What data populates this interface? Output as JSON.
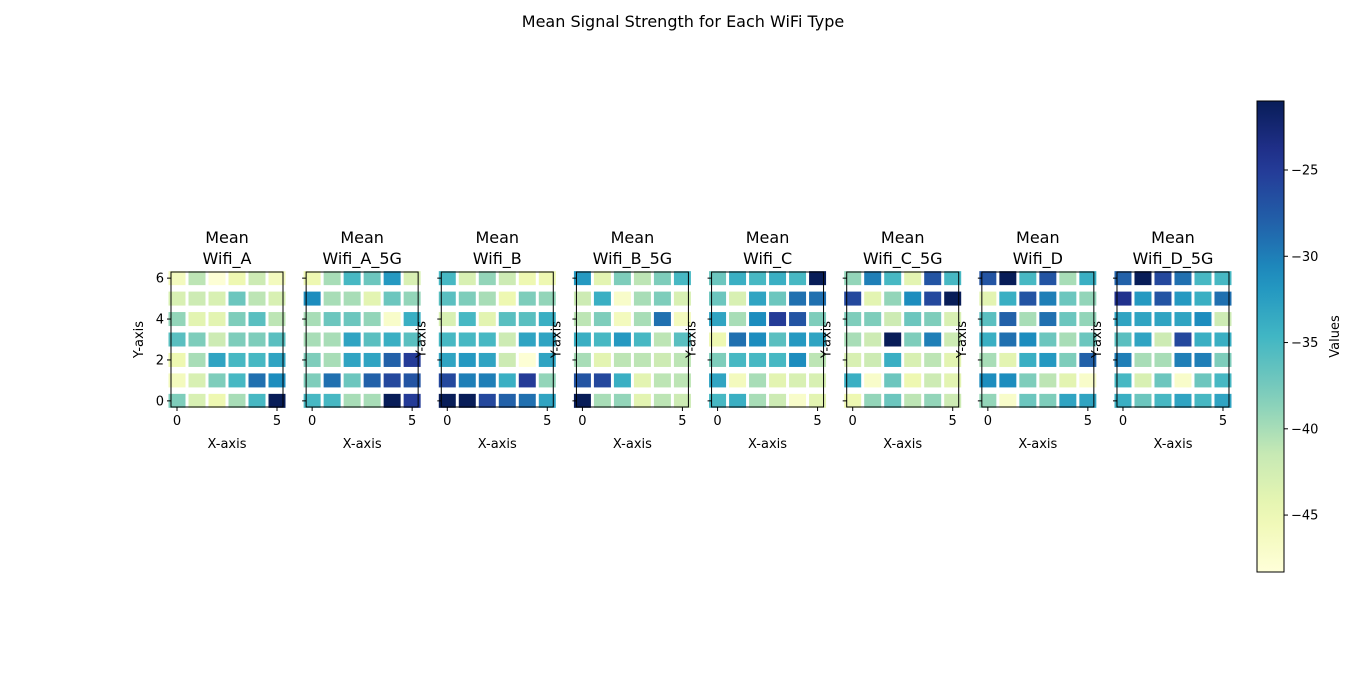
{
  "chart_data": {
    "type": "heatmap",
    "title": "Mean Signal Strength for Each WiFi Type",
    "colormap": "YlGnBu",
    "colorbar": {
      "label": "Values",
      "range": [
        -48.3,
        -21.0
      ],
      "ticks": [
        -25,
        -30,
        -35,
        -40,
        -45
      ],
      "tick_labels": [
        "−25",
        "−30",
        "−35",
        "−40",
        "−45"
      ]
    },
    "x_ticks": [
      0,
      5
    ],
    "y_ticks": [
      0,
      2,
      4,
      6
    ],
    "x_tick_labels": [
      "0",
      "5"
    ],
    "y_tick_labels": [
      "0",
      "2",
      "4",
      "6"
    ],
    "xlim": [
      -0.3,
      5.3
    ],
    "ylim": [
      -0.3,
      6.3
    ],
    "grid": "white lines between cells",
    "panels": [
      {
        "title_line1": "Mean",
        "title_line2": "Wifi_A",
        "xlabel": "X-axis",
        "ylabel": "Y-axis",
        "z": [
          [
            -38,
            -43,
            -45,
            -40,
            -35,
            -21
          ],
          [
            -46,
            -43,
            -38,
            -35,
            -29,
            -31
          ],
          [
            -45,
            -40,
            -33,
            -35,
            -35,
            -33
          ],
          [
            -36,
            -38,
            -42,
            -38,
            -38,
            -36
          ],
          [
            -39,
            -44,
            -44,
            -38,
            -36,
            -41
          ],
          [
            -43,
            -42,
            -43,
            -37,
            -41,
            -43
          ],
          [
            -46,
            -41,
            -48,
            -45,
            -42,
            -46
          ]
        ]
      },
      {
        "title_line1": "Mean",
        "title_line2": "Wifi_A_5G",
        "xlabel": "X-axis",
        "ylabel": "",
        "z": [
          [
            -35,
            -35,
            -40,
            -40,
            -21,
            -25
          ],
          [
            -38,
            -29,
            -37,
            -28,
            -26,
            -27
          ],
          [
            -38,
            -40,
            -33,
            -33,
            -28,
            -25
          ],
          [
            -40,
            -40,
            -33,
            -36,
            -34,
            -36
          ],
          [
            -40,
            -37,
            -37,
            -39,
            -47,
            -34
          ],
          [
            -31,
            -40,
            -40,
            -44,
            -37,
            -39
          ],
          [
            -45,
            -40,
            -35,
            -37,
            -32,
            -43
          ]
        ]
      },
      {
        "title_line1": "Mean",
        "title_line2": "Wifi_B",
        "xlabel": "X-axis",
        "ylabel": "Y-axis",
        "z": [
          [
            -21,
            -21,
            -26,
            -28,
            -29,
            -33
          ],
          [
            -26,
            -30,
            -30,
            -34,
            -25,
            -39
          ],
          [
            -33,
            -32,
            -33,
            -42,
            -48,
            -33
          ],
          [
            -35,
            -35,
            -35,
            -42,
            -33,
            -33
          ],
          [
            -43,
            -35,
            -44,
            -36,
            -36,
            -34
          ],
          [
            -36,
            -38,
            -40,
            -45,
            -38,
            -39
          ],
          [
            -35,
            -43,
            -39,
            -42,
            -45,
            -45
          ]
        ]
      },
      {
        "title_line1": "Mean",
        "title_line2": "Wifi_B_5G",
        "xlabel": "X-axis",
        "ylabel": "Y-axis",
        "z": [
          [
            -21,
            -40,
            -39,
            -44,
            -41,
            -42
          ],
          [
            -27,
            -26,
            -34,
            -44,
            -41,
            -41
          ],
          [
            -40,
            -44,
            -41,
            -41,
            -42,
            -41
          ],
          [
            -34,
            -35,
            -32,
            -35,
            -41,
            -36
          ],
          [
            -41,
            -38,
            -46,
            -40,
            -29,
            -46
          ],
          [
            -42,
            -34,
            -47,
            -40,
            -38,
            -43
          ],
          [
            -32,
            -44,
            -38,
            -41,
            -38,
            -35
          ]
        ]
      },
      {
        "title_line1": "Mean",
        "title_line2": "Wifi_C",
        "xlabel": "X-axis",
        "ylabel": "Y-axis",
        "z": [
          [
            -35,
            -34,
            -40,
            -42,
            -47,
            -44
          ],
          [
            -33,
            -46,
            -40,
            -44,
            -43,
            -43
          ],
          [
            -38,
            -35,
            -35,
            -35,
            -31,
            -41
          ],
          [
            -45,
            -29,
            -31,
            -36,
            -32,
            -33
          ],
          [
            -33,
            -40,
            -31,
            -25,
            -27,
            -38
          ],
          [
            -37,
            -43,
            -33,
            -37,
            -29,
            -29
          ],
          [
            -37,
            -34,
            -35,
            -34,
            -35,
            -21
          ]
        ]
      },
      {
        "title_line1": "Mean",
        "title_line2": "Wifi_C_5G",
        "xlabel": "X-axis",
        "ylabel": "Y-axis",
        "z": [
          [
            -45,
            -39,
            -37,
            -41,
            -39,
            -42
          ],
          [
            -34,
            -47,
            -37,
            -45,
            -42,
            -44
          ],
          [
            -43,
            -42,
            -34,
            -43,
            -41,
            -44
          ],
          [
            -40,
            -42,
            -21,
            -38,
            -30,
            -42
          ],
          [
            -38,
            -38,
            -42,
            -37,
            -38,
            -43
          ],
          [
            -26,
            -44,
            -39,
            -31,
            -26,
            -21
          ],
          [
            -39,
            -30,
            -35,
            -44,
            -27,
            -35
          ]
        ]
      },
      {
        "title_line1": "Mean",
        "title_line2": "Wifi_D",
        "xlabel": "X-axis",
        "ylabel": "Y-axis",
        "z": [
          [
            -39,
            -47,
            -37,
            -38,
            -33,
            -33
          ],
          [
            -31,
            -31,
            -38,
            -41,
            -44,
            -47
          ],
          [
            -40,
            -44,
            -34,
            -32,
            -38,
            -28
          ],
          [
            -34,
            -29,
            -31,
            -37,
            -40,
            -37
          ],
          [
            -36,
            -28,
            -40,
            -29,
            -37,
            -39
          ],
          [
            -44,
            -34,
            -27,
            -30,
            -37,
            -39
          ],
          [
            -27,
            -21,
            -35,
            -27,
            -40,
            -34
          ]
        ]
      },
      {
        "title_line1": "Mean",
        "title_line2": "Wifi_D_5G",
        "xlabel": "X-axis",
        "ylabel": "Y-axis",
        "z": [
          [
            -34,
            -37,
            -35,
            -33,
            -35,
            -33
          ],
          [
            -35,
            -43,
            -37,
            -47,
            -37,
            -35
          ],
          [
            -30,
            -40,
            -40,
            -30,
            -30,
            -38
          ],
          [
            -36,
            -33,
            -42,
            -26,
            -34,
            -34
          ],
          [
            -33,
            -33,
            -33,
            -33,
            -31,
            -42
          ],
          [
            -24,
            -32,
            -27,
            -32,
            -34,
            -29
          ],
          [
            -28,
            -21,
            -26,
            -29,
            -35,
            -35
          ]
        ]
      }
    ]
  }
}
